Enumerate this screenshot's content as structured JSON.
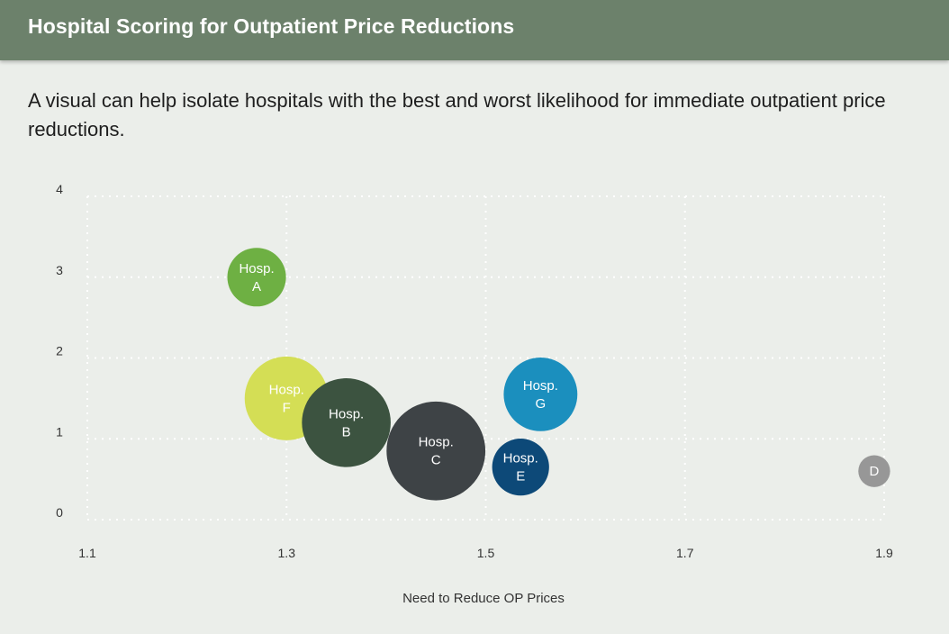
{
  "header": {
    "title": "Hospital Scoring for Outpatient Price Reductions",
    "background": "#6c816b"
  },
  "subtitle": "A visual can help isolate hospitals with the best and worst likelihood for immediate outpatient price reductions.",
  "chart_data": {
    "type": "scatter",
    "bubble": true,
    "title": "",
    "xlabel": "Need to Reduce OP Prices",
    "ylabel": "",
    "xlim": [
      1.1,
      1.9
    ],
    "ylim": [
      0,
      4
    ],
    "x_ticks": [
      1.1,
      1.3,
      1.5,
      1.7,
      1.9
    ],
    "y_ticks": [
      0,
      1,
      2,
      3,
      4
    ],
    "x_tick_labels": [
      "1.1",
      "1.3",
      "1.5",
      "1.7",
      "1.9"
    ],
    "y_tick_labels": [
      "0",
      "1",
      "2",
      "3",
      "4"
    ],
    "grid": true,
    "legend": "none",
    "points": [
      {
        "id": "A",
        "label_lines": [
          "Hosp.",
          "A"
        ],
        "x": 1.27,
        "y": 3.0,
        "size": 3.5,
        "color": "#6eb043"
      },
      {
        "id": "F",
        "label_lines": [
          "Hosp.",
          "F"
        ],
        "x": 1.3,
        "y": 1.5,
        "size": 5.0,
        "color": "#d4de55"
      },
      {
        "id": "B",
        "label_lines": [
          "Hosp.",
          "B"
        ],
        "x": 1.36,
        "y": 1.2,
        "size": 5.3,
        "color": "#3c5340"
      },
      {
        "id": "C",
        "label_lines": [
          "Hosp.",
          "C"
        ],
        "x": 1.45,
        "y": 0.85,
        "size": 5.9,
        "color": "#3e4346"
      },
      {
        "id": "G",
        "label_lines": [
          "Hosp.",
          "G"
        ],
        "x": 1.555,
        "y": 1.55,
        "size": 4.4,
        "color": "#1b8fbe"
      },
      {
        "id": "E",
        "label_lines": [
          "Hosp.",
          "E"
        ],
        "x": 1.535,
        "y": 0.65,
        "size": 3.4,
        "color": "#0d4978"
      },
      {
        "id": "D",
        "label_lines": [
          "D"
        ],
        "x": 1.89,
        "y": 0.6,
        "size": 1.9,
        "color": "#979797"
      }
    ]
  }
}
